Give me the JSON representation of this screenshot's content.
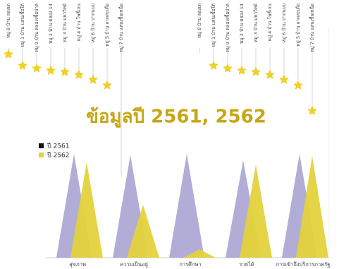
{
  "villages_left": [
    "หมู่ 8 บ้าน ลองเด",
    "หมู่ 1 บ้าน แสนเชื้อใต้",
    "หมู่ 9 บ้าน คลองเชื้อปาล",
    "หมู่ 2 บ้าน คลอง 14",
    "หมู่ 3 บ้าน มหาวิทย์",
    "หมู่ 4 บ้าน โพธิ์เกน",
    "หมู่ 6 บ้าน ปากนบบ",
    "หมู่ 5 บ้าน ลาดสะเดือ",
    "หมู่ 7 บ้าน แสนเชื้อเหนือ"
  ],
  "villages_right": [
    "หมู่ 8 บ้าน ลองเด",
    "หมู่ 1 บ้าน แสนเชื้อใต้",
    "หมู่ 9 บ้าน คลองเชื้อปาล",
    "หมู่ 2 บ้าน คลอง 14",
    "หมู่ 3 บ้าน มหาวิทย์",
    "หมู่ 4 บ้าน โพธิ์เกน",
    "หมู่ 6 บ้าน ปากนบบ",
    "หมู่ 5 บ้าน ลาดสะเดือ",
    "หมู่ 7 บ้าน แสนเชื้อเหนือ"
  ],
  "chart_data": {
    "type": "spike",
    "title": "ข้อมูลปี 2561, 2562",
    "categories": [
      "สุขภาพ",
      "ความเป็นอยู่",
      "การศึกษา",
      "รายได้",
      "การเข้าถึงบริการภาครัฐ"
    ],
    "series": [
      {
        "name": "ปี 2561",
        "color": "#aaa4d2",
        "legend_color": "#111111",
        "values": [
          98,
          97,
          98,
          92,
          98
        ]
      },
      {
        "name": "ปี 2562",
        "color": "#e4d23c",
        "legend_color": "#e4d23c",
        "values": [
          90,
          50,
          8,
          88,
          96
        ]
      }
    ],
    "ylim": [
      0,
      100
    ]
  }
}
